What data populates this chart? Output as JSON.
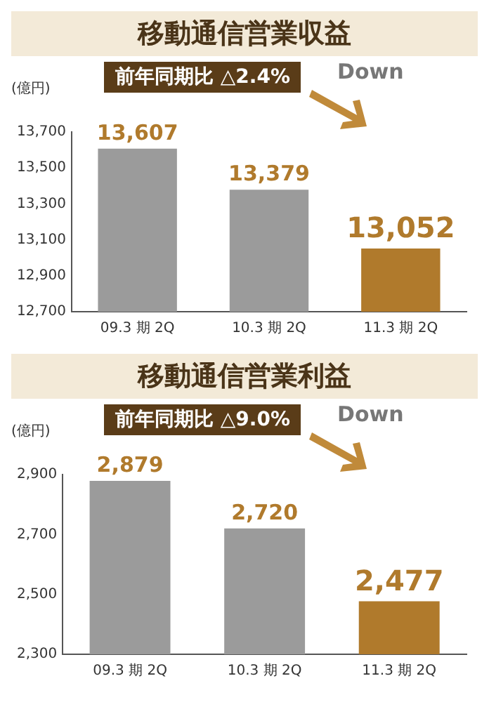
{
  "chart_data": [
    {
      "type": "bar",
      "title": "移動通信営業収益",
      "ylabel": "(億円)",
      "annotations": [
        "前年同期比 △2.4%",
        "Down"
      ],
      "categories": [
        "09.3 期 2Q",
        "10.3 期 2Q",
        "11.3 期 2Q"
      ],
      "values": [
        13607,
        13379,
        13052
      ],
      "colors": [
        "#9b9b9b",
        "#9b9b9b",
        "#b07a2c"
      ],
      "value_labels": [
        "13,607",
        "13,379",
        "13,052"
      ],
      "ylim": [
        12700,
        13700
      ],
      "yticks": [
        {
          "value": 12700,
          "label": "12,700"
        },
        {
          "value": 12900,
          "label": "12,900"
        },
        {
          "value": 13100,
          "label": "13,100"
        },
        {
          "value": 13300,
          "label": "13,300"
        },
        {
          "value": 13500,
          "label": "13,500"
        },
        {
          "value": 13700,
          "label": "13,700"
        }
      ],
      "grid": false,
      "legend": false
    },
    {
      "type": "bar",
      "title": "移動通信営業利益",
      "ylabel": "(億円)",
      "annotations": [
        "前年同期比 △9.0%",
        "Down"
      ],
      "categories": [
        "09.3 期 2Q",
        "10.3 期 2Q",
        "11.3 期 2Q"
      ],
      "values": [
        2879,
        2720,
        2477
      ],
      "colors": [
        "#9b9b9b",
        "#9b9b9b",
        "#b07a2c"
      ],
      "value_labels": [
        "2,879",
        "2,720",
        "2,477"
      ],
      "ylim": [
        2300,
        2900
      ],
      "yticks": [
        {
          "value": 2300,
          "label": "2,300"
        },
        {
          "value": 2500,
          "label": "2,500"
        },
        {
          "value": 2700,
          "label": "2,700"
        },
        {
          "value": 2900,
          "label": "2,900"
        }
      ],
      "grid": false,
      "legend": false
    }
  ]
}
